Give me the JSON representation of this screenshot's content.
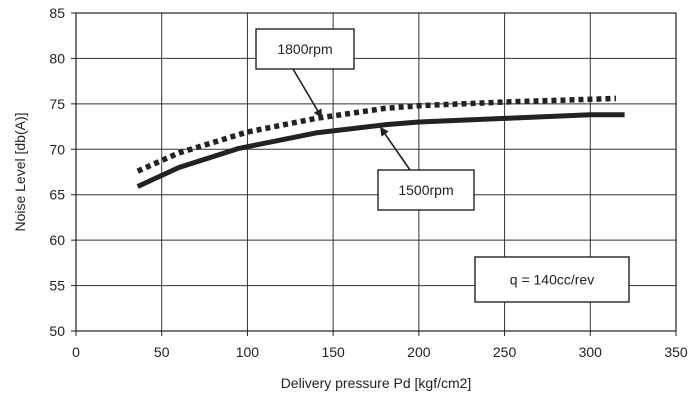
{
  "chart_data": {
    "type": "line",
    "title": "",
    "xlabel": "Delivery pressure Pd [kgf/cm2]",
    "ylabel": "Noise Level [db(A)]",
    "xlim": [
      0,
      350
    ],
    "ylim": [
      50,
      85
    ],
    "xticks": [
      0,
      50,
      100,
      150,
      200,
      250,
      300,
      350
    ],
    "yticks": [
      50,
      55,
      60,
      65,
      70,
      75,
      80,
      85
    ],
    "grid": true,
    "series": [
      {
        "name": "1500rpm",
        "style": "solid",
        "color": "#222222",
        "x": [
          36,
          60,
          95,
          140,
          180,
          200,
          250,
          300,
          320
        ],
        "y": [
          65.9,
          68.0,
          70.1,
          71.8,
          72.7,
          73.0,
          73.4,
          73.8,
          73.8
        ]
      },
      {
        "name": "1800rpm",
        "style": "dotted",
        "color": "#222222",
        "x": [
          36,
          60,
          100,
          140,
          180,
          200,
          250,
          300,
          315
        ],
        "y": [
          67.6,
          69.6,
          71.9,
          73.4,
          74.5,
          74.8,
          75.2,
          75.5,
          75.6
        ]
      }
    ],
    "annotations": [
      {
        "label": "1800rpm",
        "arrow_to": {
          "x": 143,
          "y": 73.6
        }
      },
      {
        "label": "1500rpm",
        "arrow_to": {
          "x": 178,
          "y": 72.3
        }
      },
      {
        "label": "q = 140cc/rev"
      }
    ]
  }
}
